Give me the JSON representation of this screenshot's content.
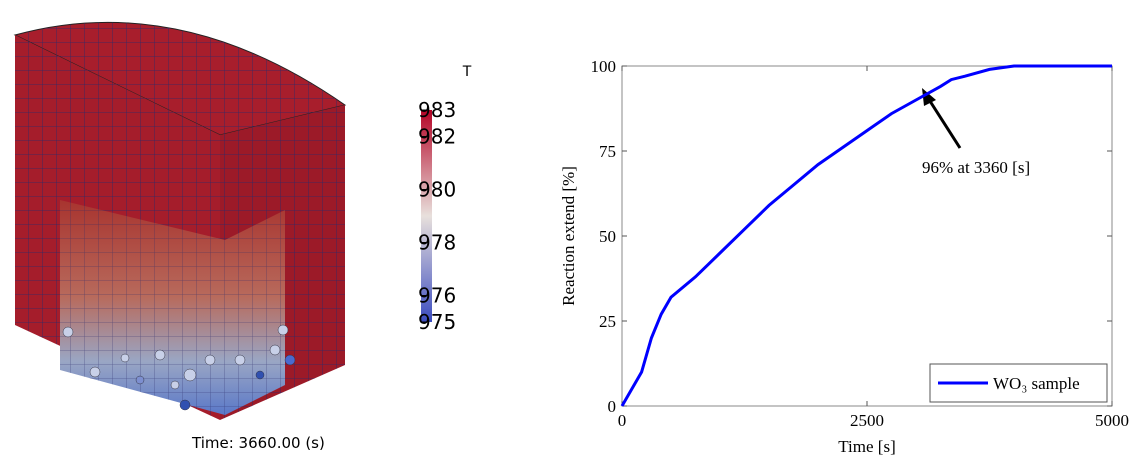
{
  "simulation": {
    "colorbar": {
      "title": "T",
      "ticks": [
        983,
        982,
        980,
        978,
        976,
        975
      ],
      "lim": [
        975,
        983
      ]
    },
    "time_label": "Time: 3660.00 (s)"
  },
  "chart_data": {
    "type": "line",
    "x": [
      0,
      100,
      200,
      300,
      400,
      500,
      750,
      1000,
      1250,
      1500,
      1750,
      2000,
      2250,
      2500,
      2750,
      3000,
      3250,
      3360,
      3500,
      3750,
      4000,
      4250,
      5000
    ],
    "series": [
      {
        "name": "WO₃ sample",
        "color": "#0000ff",
        "values": [
          0,
          5,
          10,
          20,
          27,
          32,
          38,
          45,
          52,
          59,
          65,
          71,
          76,
          81,
          86,
          90,
          94,
          96,
          97,
          99,
          100,
          100,
          100
        ]
      }
    ],
    "xlabel": "Time [s]",
    "ylabel": "Reaction extend [%]",
    "xlim": [
      0,
      5000
    ],
    "ylim": [
      0,
      100
    ],
    "xticks": [
      0,
      2500,
      5000
    ],
    "yticks": [
      0,
      25,
      50,
      75,
      100
    ],
    "annotation": "96% at 3360 [s]",
    "legend": "lower right"
  }
}
